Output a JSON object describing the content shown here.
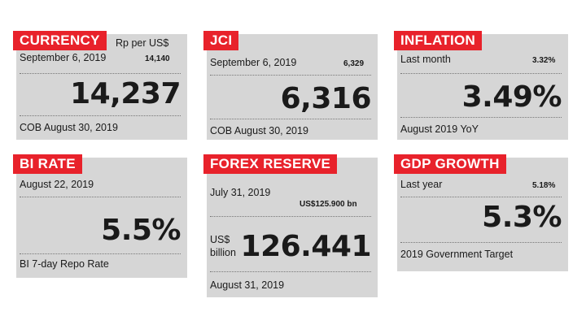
{
  "currency": {
    "title": "CURRENCY",
    "unit": "Rp per US$",
    "date": "September 6, 2019",
    "prev_value": "14,140",
    "value": "14,237",
    "footer": "COB August 30, 2019"
  },
  "jci": {
    "title": "JCI",
    "date": "September 6, 2019",
    "prev_value": "6,329",
    "value": "6,316",
    "footer": "COB August 30, 2019"
  },
  "inflation": {
    "title": "INFLATION",
    "date": "Last month",
    "prev_value": "3.32%",
    "value": "3.49%",
    "footer": "August 2019 YoY"
  },
  "bi_rate": {
    "title": "BI RATE",
    "date": "August 22, 2019",
    "value": "5.5%",
    "footer": "BI 7-day Repo Rate"
  },
  "forex": {
    "title": "FOREX RESERVE",
    "date": "July 31, 2019",
    "prev_value": "US$125.900 bn",
    "unit_line1": "US$",
    "unit_line2": "billion",
    "value": "126.441",
    "footer": "August 31, 2019"
  },
  "gdp": {
    "title": "GDP GROWTH",
    "date": "Last year",
    "prev_value": "5.18%",
    "value": "5.3%",
    "footer": "2019 Government Target"
  },
  "colors": {
    "accent": "#e8222b",
    "card_bg": "#d6d6d6"
  }
}
